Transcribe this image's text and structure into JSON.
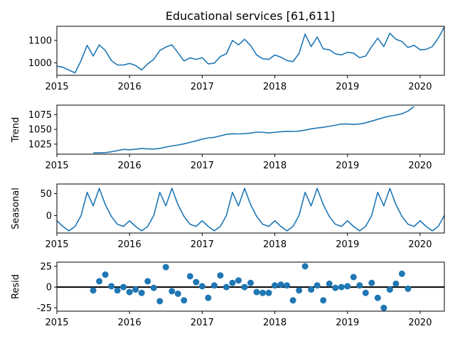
{
  "chart_data": {
    "type": "line",
    "title": "Educational services  [61,611]",
    "x_start": "2015-01",
    "x_end": "2020-05",
    "x_tick_labels": [
      "2015",
      "2016",
      "2017",
      "2018",
      "2019",
      "2020"
    ],
    "line_color": "#1f77b4",
    "panels": [
      {
        "type": "line",
        "ylabel": "",
        "ylim": [
          944,
          1163
        ],
        "yticks": [
          1000,
          1100
        ],
        "values": [
          985,
          980,
          967,
          955,
          1010,
          1078,
          1030,
          1080,
          1055,
          1010,
          990,
          990,
          997,
          988,
          968,
          995,
          1015,
          1055,
          1070,
          1080,
          1045,
          1008,
          1022,
          1015,
          1023,
          995,
          998,
          1028,
          1040,
          1100,
          1080,
          1105,
          1077,
          1035,
          1018,
          1015,
          1035,
          1025,
          1010,
          1005,
          1042,
          1128,
          1072,
          1115,
          1062,
          1058,
          1040,
          1035,
          1047,
          1043,
          1023,
          1030,
          1072,
          1110,
          1072,
          1132,
          1105,
          1095,
          1068,
          1078,
          1058,
          1060,
          1072,
          1110,
          1160
        ]
      },
      {
        "type": "line",
        "ylabel": "Trend",
        "ylim": [
          1008,
          1091
        ],
        "yticks": [
          1025,
          1050,
          1075
        ],
        "values": [
          null,
          null,
          null,
          null,
          null,
          null,
          1010,
          1010.3,
          1010.6,
          1012,
          1014,
          1016,
          1015.5,
          1016.3,
          1017.5,
          1017,
          1016.7,
          1017.7,
          1020,
          1022,
          1023.5,
          1025.5,
          1028,
          1030.5,
          1033.5,
          1035.5,
          1036.5,
          1039,
          1041.5,
          1042.5,
          1042.3,
          1042.7,
          1043.7,
          1045.3,
          1045,
          1044,
          1045,
          1046,
          1046.7,
          1046.5,
          1047,
          1048.8,
          1050.8,
          1052.3,
          1053.5,
          1055.2,
          1057,
          1059.1,
          1059.1,
          1058.5,
          1059,
          1061,
          1064,
          1067,
          1070,
          1072.5,
          1074,
          1076.5,
          1081,
          1088.5,
          null,
          null,
          null,
          null,
          null
        ]
      },
      {
        "type": "line",
        "ylabel": "Seasonal",
        "ylim": [
          -40,
          72
        ],
        "yticks": [
          0,
          50
        ],
        "values": [
          -12,
          -25,
          -35,
          -25,
          0,
          53,
          22,
          62,
          25,
          -2,
          -20,
          -25,
          -12,
          -25,
          -35,
          -25,
          0,
          53,
          22,
          62,
          25,
          -2,
          -20,
          -25,
          -12,
          -25,
          -35,
          -25,
          0,
          53,
          22,
          62,
          25,
          -2,
          -20,
          -25,
          -12,
          -25,
          -35,
          -25,
          0,
          53,
          22,
          62,
          25,
          -2,
          -20,
          -25,
          -12,
          -25,
          -35,
          -25,
          0,
          53,
          22,
          62,
          25,
          -2,
          -20,
          -25,
          -12,
          -25,
          -35,
          -25,
          0
        ]
      },
      {
        "type": "scatter",
        "ylabel": "Resid",
        "ylim": [
          -29,
          30
        ],
        "yticks": [
          -25,
          0,
          25
        ],
        "zero_line": true,
        "values": [
          null,
          null,
          null,
          null,
          null,
          null,
          -4,
          7,
          15,
          1,
          -4,
          0,
          -6,
          -3,
          -7,
          7,
          -1,
          -17,
          24,
          -5,
          -8,
          -16,
          13,
          6,
          1,
          -13,
          2,
          14,
          0,
          5,
          8,
          0,
          5,
          -6,
          -7,
          -7,
          2,
          3,
          2,
          -16,
          -4,
          25,
          -3,
          2,
          -16,
          4,
          -1,
          0,
          1,
          12,
          2,
          -7,
          5,
          -13,
          -25,
          -3,
          4,
          16,
          -2,
          null,
          null,
          null,
          null,
          null,
          null
        ]
      }
    ]
  }
}
